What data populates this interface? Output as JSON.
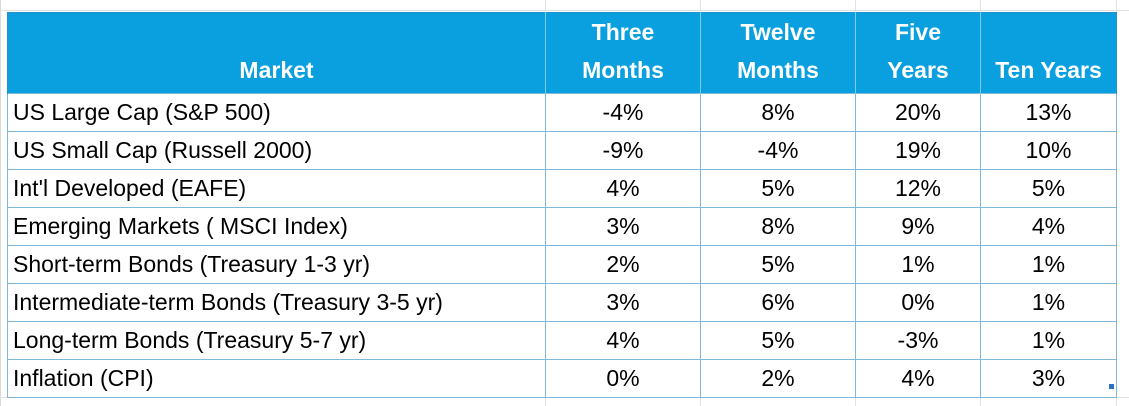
{
  "table": {
    "headers": [
      {
        "line1": "",
        "line2": "Market"
      },
      {
        "line1": "Three",
        "line2": "Months"
      },
      {
        "line1": "Twelve",
        "line2": "Months"
      },
      {
        "line1": "Five",
        "line2": "Years"
      },
      {
        "line1": "",
        "line2": "Ten Years"
      }
    ],
    "rows": [
      {
        "market": "US Large Cap (S&P 500)",
        "three_months": "-4%",
        "twelve_months": "8%",
        "five_years": "20%",
        "ten_years": "13%"
      },
      {
        "market": "US Small Cap (Russell 2000)",
        "three_months": "-9%",
        "twelve_months": "-4%",
        "five_years": "19%",
        "ten_years": "10%"
      },
      {
        "market": "Int'l Developed (EAFE)",
        "three_months": "4%",
        "twelve_months": "5%",
        "five_years": "12%",
        "ten_years": "5%"
      },
      {
        "market": "Emerging Markets ( MSCI Index)",
        "three_months": "3%",
        "twelve_months": "8%",
        "five_years": "9%",
        "ten_years": "4%"
      },
      {
        "market": "Short-term Bonds (Treasury 1-3 yr)",
        "three_months": "2%",
        "twelve_months": "5%",
        "five_years": "1%",
        "ten_years": "1%"
      },
      {
        "market": "Intermediate-term Bonds (Treasury 3-5 yr)",
        "three_months": "3%",
        "twelve_months": "6%",
        "five_years": "0%",
        "ten_years": "1%"
      },
      {
        "market": "Long-term Bonds (Treasury 5-7 yr)",
        "three_months": "4%",
        "twelve_months": "5%",
        "five_years": "-3%",
        "ten_years": "1%"
      },
      {
        "market": "Inflation (CPI)",
        "three_months": "0%",
        "twelve_months": "2%",
        "five_years": "4%",
        "ten_years": "3%"
      }
    ]
  },
  "colors": {
    "header_background": "#0aa0e0",
    "header_text": "#ffffff",
    "cell_border": "#7fb8da"
  }
}
